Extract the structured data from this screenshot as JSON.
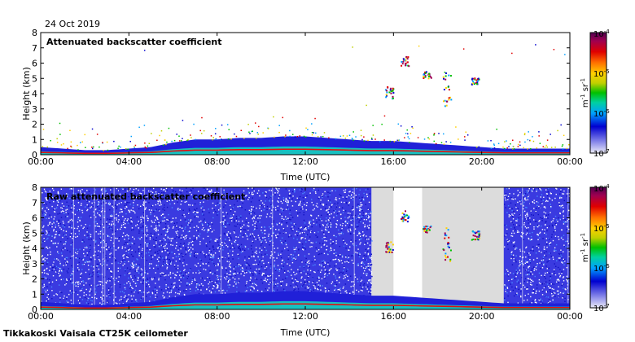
{
  "date_label": "24 Oct 2019",
  "footer_label": "Tikkakoski Vaisala CT25K ceilometer",
  "colors": {
    "background_fill": "#dcdcdc",
    "low_backscatter": "#2020d8",
    "mid_backscatter": "#18c0c0",
    "high_backscatter": "#e01010",
    "colormap": [
      "#ececf8",
      "#8080e8",
      "#0000d0",
      "#00a0ff",
      "#00d0a0",
      "#00c000",
      "#c0d000",
      "#ffd000",
      "#ff7000",
      "#e00000",
      "#a00050",
      "#500050"
    ]
  },
  "chart_data": [
    {
      "type": "heatmap",
      "title": "Attenuated backscatter coefficient",
      "xlabel": "Time (UTC)",
      "ylabel": "Height (km)",
      "xlim": [
        "00:00",
        "00:00"
      ],
      "ylim": [
        0,
        8
      ],
      "xticks": [
        "00:00",
        "04:00",
        "08:00",
        "12:00",
        "16:00",
        "20:00",
        "00:00"
      ],
      "yticks": [
        "0",
        "1",
        "2",
        "3",
        "4",
        "5",
        "6",
        "7",
        "8"
      ],
      "colorbar": {
        "label": "m⁻¹ sr⁻¹",
        "scale": "log",
        "ticks": [
          "10⁻⁴",
          "10⁻⁵",
          "10⁻⁶",
          "10⁻⁷"
        ]
      },
      "features": [
        {
          "name": "boundary layer",
          "time_start_h": 0,
          "time_end_h": 24,
          "top_km": [
            0.5,
            0.4,
            0.3,
            0.3,
            0.4,
            0.5,
            0.8,
            1.0,
            1.0,
            1.1,
            1.1,
            1.2,
            1.2,
            1.1,
            1.0,
            0.9,
            0.9,
            0.8,
            0.7,
            0.6,
            0.5,
            0.4,
            0.4,
            0.4,
            0.4
          ]
        },
        {
          "name": "cloud patch",
          "time_h": 15.8,
          "height_km": [
            3.7,
            4.5
          ]
        },
        {
          "name": "cloud patch",
          "time_h": 16.5,
          "height_km": [
            5.8,
            6.5
          ]
        },
        {
          "name": "cloud patch",
          "time_h": 17.5,
          "height_km": [
            5.0,
            5.5
          ]
        },
        {
          "name": "cloud patch",
          "time_h": 18.4,
          "height_km": [
            3.2,
            5.4
          ]
        },
        {
          "name": "cloud patch",
          "time_h": 19.7,
          "height_km": [
            4.6,
            5.2
          ]
        }
      ]
    },
    {
      "type": "heatmap",
      "title": "Raw attenuated backscatter coefficient",
      "xlabel": "Time (UTC)",
      "ylabel": "Height (km)",
      "xlim": [
        "00:00",
        "00:00"
      ],
      "ylim": [
        0,
        8
      ],
      "xticks": [
        "00:00",
        "04:00",
        "08:00",
        "12:00",
        "16:00",
        "20:00",
        "00:00"
      ],
      "yticks": [
        "0",
        "1",
        "2",
        "3",
        "4",
        "5",
        "6",
        "7",
        "8"
      ],
      "colorbar": {
        "label": "m⁻¹ sr⁻¹",
        "scale": "log",
        "ticks": [
          "10⁻⁴",
          "10⁻⁵",
          "10⁻⁶",
          "10⁻⁷"
        ]
      },
      "features": [
        {
          "name": "noise field",
          "time_start_h": 0,
          "time_end_h": 15.0
        },
        {
          "name": "grey gap",
          "time_start_h": 15.0,
          "time_end_h": 21.0
        },
        {
          "name": "noise field",
          "time_start_h": 21.0,
          "time_end_h": 24.0
        }
      ]
    }
  ]
}
